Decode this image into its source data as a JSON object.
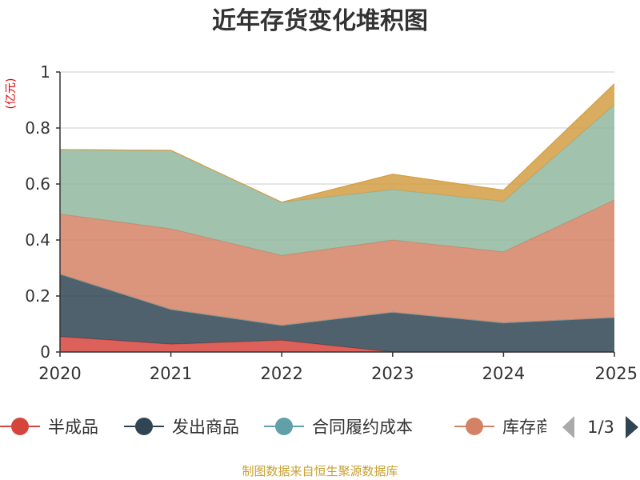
{
  "chart_data": {
    "type": "area",
    "stacked": true,
    "title": "近年存货变化堆积图",
    "unit_label": "(亿元)",
    "x": [
      "2020",
      "2021",
      "2022",
      "2023",
      "2024",
      "2025"
    ],
    "ylim": [
      0,
      1
    ],
    "yticks": [
      "0",
      "0.2",
      "0.4",
      "0.6",
      "0.8",
      "1"
    ],
    "grid": true,
    "series": [
      {
        "name": "半成品",
        "values": [
          0.055,
          0.028,
          0.042,
          0.0,
          0.0,
          0.0
        ]
      },
      {
        "name": "发出商品",
        "values": [
          0.223,
          0.124,
          0.053,
          0.142,
          0.104,
          0.123
        ]
      },
      {
        "name": "合同履约成本",
        "values": [
          0.0,
          0.0,
          0.0,
          0.0,
          0.0,
          0.0
        ]
      },
      {
        "name": "库存商品",
        "values": [
          0.215,
          0.288,
          0.25,
          0.258,
          0.254,
          0.42
        ]
      },
      {
        "name": "",
        "values": [
          0.23,
          0.28,
          0.19,
          0.18,
          0.18,
          0.34
        ]
      },
      {
        "name": "",
        "values": [
          0.0,
          0.0,
          0.0,
          0.055,
          0.04,
          0.075
        ]
      }
    ],
    "legend": {
      "placement": "bottom",
      "visible_items": [
        "半成品",
        "发出商品",
        "合同履约成本",
        "库存商"
      ],
      "page": "1/3"
    }
  },
  "colors": {
    "series": [
      "#d6453d",
      "#2f4554",
      "#61a0a8",
      "#d48265",
      "#91b8a0",
      "#d49e43"
    ],
    "title": "#333333",
    "unit_label": "#e00000",
    "axis": "#333333",
    "grid": "#cccccc",
    "source": "#c8a030",
    "pager_inactive": "#aaaaaa",
    "pager_active": "#2f4554"
  },
  "footer": {
    "source": "制图数据来自恒生聚源数据库"
  }
}
